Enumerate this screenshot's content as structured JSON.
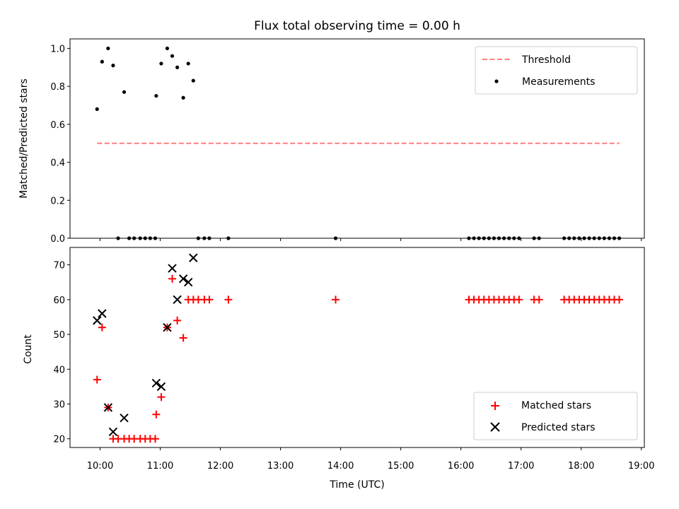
{
  "chart_data": [
    {
      "type": "scatter",
      "title": "Flux total observing time = 0.00 h",
      "ylabel": "Matched/Predicted stars",
      "xlabel": "",
      "ylim": [
        0,
        1.05
      ],
      "y_ticks": [
        "0.0",
        "0.2",
        "0.4",
        "0.6",
        "0.8",
        "1.0"
      ],
      "legend_placement": "top-right",
      "threshold": {
        "name": "Threshold",
        "value": 0.5,
        "x_range": [
          "09:57",
          "18:38"
        ],
        "color": "#ff7f7f"
      },
      "series": [
        {
          "name": "Measurements",
          "color": "#000000",
          "points": [
            [
              "09:57",
              0.68
            ],
            [
              "10:02",
              0.93
            ],
            [
              "10:08",
              1.0
            ],
            [
              "10:13",
              0.91
            ],
            [
              "10:18",
              0.0
            ],
            [
              "10:24",
              0.77
            ],
            [
              "10:29",
              0.0
            ],
            [
              "10:34",
              0.0
            ],
            [
              "10:40",
              0.0
            ],
            [
              "10:45",
              0.0
            ],
            [
              "10:50",
              0.0
            ],
            [
              "10:55",
              0.0
            ],
            [
              "10:56",
              0.75
            ],
            [
              "11:01",
              0.92
            ],
            [
              "11:07",
              1.0
            ],
            [
              "11:12",
              0.96
            ],
            [
              "11:17",
              0.9
            ],
            [
              "11:23",
              0.74
            ],
            [
              "11:28",
              0.92
            ],
            [
              "11:33",
              0.83
            ],
            [
              "11:38",
              0.0
            ],
            [
              "11:44",
              0.0
            ],
            [
              "11:49",
              0.0
            ],
            [
              "12:08",
              0.0
            ],
            [
              "13:55",
              0.0
            ],
            [
              "16:08",
              0.0
            ],
            [
              "16:13",
              0.0
            ],
            [
              "16:18",
              0.0
            ],
            [
              "16:23",
              0.0
            ],
            [
              "16:28",
              0.0
            ],
            [
              "16:33",
              0.0
            ],
            [
              "16:38",
              0.0
            ],
            [
              "16:43",
              0.0
            ],
            [
              "16:48",
              0.0
            ],
            [
              "16:53",
              0.0
            ],
            [
              "16:58",
              0.0
            ],
            [
              "17:13",
              0.0
            ],
            [
              "17:18",
              0.0
            ],
            [
              "17:43",
              0.0
            ],
            [
              "17:48",
              0.0
            ],
            [
              "17:53",
              0.0
            ],
            [
              "17:58",
              0.0
            ],
            [
              "18:03",
              0.0
            ],
            [
              "18:08",
              0.0
            ],
            [
              "18:13",
              0.0
            ],
            [
              "18:18",
              0.0
            ],
            [
              "18:23",
              0.0
            ],
            [
              "18:28",
              0.0
            ],
            [
              "18:33",
              0.0
            ],
            [
              "18:38",
              0.0
            ]
          ]
        }
      ]
    },
    {
      "type": "scatter",
      "title": "",
      "ylabel": "Count",
      "xlabel": "Time (UTC)",
      "xlim": [
        "09:30",
        "19:03"
      ],
      "ylim": [
        17.5,
        75
      ],
      "x_ticks": [
        "10:00",
        "11:00",
        "12:00",
        "13:00",
        "14:00",
        "15:00",
        "16:00",
        "17:00",
        "18:00",
        "19:00"
      ],
      "y_ticks": [
        "20",
        "30",
        "40",
        "50",
        "60",
        "70"
      ],
      "legend_placement": "bottom-right",
      "series": [
        {
          "name": "Matched stars",
          "marker": "plus",
          "color": "#ff0000",
          "points": [
            [
              "09:57",
              37
            ],
            [
              "10:02",
              52
            ],
            [
              "10:08",
              29
            ],
            [
              "10:13",
              20
            ],
            [
              "10:18",
              20
            ],
            [
              "10:24",
              20
            ],
            [
              "10:29",
              20
            ],
            [
              "10:34",
              20
            ],
            [
              "10:40",
              20
            ],
            [
              "10:45",
              20
            ],
            [
              "10:50",
              20
            ],
            [
              "10:55",
              20
            ],
            [
              "10:56",
              27
            ],
            [
              "11:01",
              32
            ],
            [
              "11:07",
              52
            ],
            [
              "11:12",
              66
            ],
            [
              "11:17",
              54
            ],
            [
              "11:23",
              49
            ],
            [
              "11:28",
              60
            ],
            [
              "11:33",
              60
            ],
            [
              "11:38",
              60
            ],
            [
              "11:44",
              60
            ],
            [
              "11:49",
              60
            ],
            [
              "12:08",
              60
            ],
            [
              "13:55",
              60
            ],
            [
              "16:08",
              60
            ],
            [
              "16:13",
              60
            ],
            [
              "16:18",
              60
            ],
            [
              "16:23",
              60
            ],
            [
              "16:28",
              60
            ],
            [
              "16:33",
              60
            ],
            [
              "16:38",
              60
            ],
            [
              "16:43",
              60
            ],
            [
              "16:48",
              60
            ],
            [
              "16:53",
              60
            ],
            [
              "16:58",
              60
            ],
            [
              "17:13",
              60
            ],
            [
              "17:18",
              60
            ],
            [
              "17:43",
              60
            ],
            [
              "17:48",
              60
            ],
            [
              "17:53",
              60
            ],
            [
              "17:58",
              60
            ],
            [
              "18:03",
              60
            ],
            [
              "18:08",
              60
            ],
            [
              "18:13",
              60
            ],
            [
              "18:18",
              60
            ],
            [
              "18:23",
              60
            ],
            [
              "18:28",
              60
            ],
            [
              "18:33",
              60
            ],
            [
              "18:38",
              60
            ]
          ]
        },
        {
          "name": "Predicted stars",
          "marker": "x",
          "color": "#000000",
          "points": [
            [
              "09:57",
              54
            ],
            [
              "10:02",
              56
            ],
            [
              "10:08",
              29
            ],
            [
              "10:13",
              22
            ],
            [
              "10:24",
              26
            ],
            [
              "10:56",
              36
            ],
            [
              "11:01",
              35
            ],
            [
              "11:07",
              52
            ],
            [
              "11:12",
              69
            ],
            [
              "11:17",
              60
            ],
            [
              "11:23",
              66
            ],
            [
              "11:28",
              65
            ],
            [
              "11:33",
              72
            ]
          ]
        }
      ]
    }
  ]
}
